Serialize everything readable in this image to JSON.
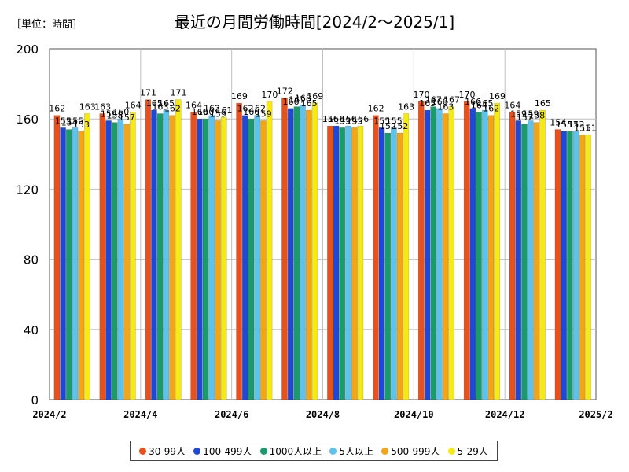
{
  "unit_label": "［単位：時間］",
  "chart_data": {
    "type": "bar",
    "title": "最近の月間労働時間[2024/2〜2025/1]",
    "xlabel": "",
    "ylabel": "",
    "ylim": [
      0,
      200
    ],
    "yticks": [
      0,
      40,
      80,
      120,
      160,
      200
    ],
    "grid": true,
    "legend_position": "bottom",
    "categories": [
      "2024/2",
      "2024/3",
      "2024/4",
      "2024/5",
      "2024/6",
      "2024/7",
      "2024/8",
      "2024/9",
      "2024/10",
      "2024/11",
      "2024/12",
      "2025/1"
    ],
    "x_tick_labels": [
      "2024/2",
      "2024/4",
      "2024/6",
      "2024/8",
      "2024/10",
      "2024/12",
      "2025/2"
    ],
    "series": [
      {
        "name": "30-99人",
        "color": "#e8501c",
        "values": [
          162,
          163,
          171,
          164,
          169,
          172,
          156,
          162,
          170,
          170,
          164,
          154
        ]
      },
      {
        "name": "100-499人",
        "color": "#1f48d8",
        "values": [
          155,
          159,
          165,
          160,
          162,
          166,
          156,
          155,
          165,
          166,
          159,
          153
        ]
      },
      {
        "name": "1000人以上",
        "color": "#1a9b6c",
        "values": [
          154,
          158,
          163,
          160,
          160,
          167,
          155,
          152,
          167,
          164,
          157,
          153
        ]
      },
      {
        "name": "5人以上",
        "color": "#5ec3ec",
        "values": [
          155,
          160,
          165,
          162,
          162,
          168,
          156,
          155,
          166,
          165,
          159,
          153
        ]
      },
      {
        "name": "500-999人",
        "color": "#f2a516",
        "values": [
          153,
          157,
          162,
          159,
          159,
          165,
          155,
          152,
          163,
          162,
          158,
          151
        ]
      },
      {
        "name": "5-29人",
        "color": "#f6ea10",
        "values": [
          163,
          164,
          171,
          161,
          170,
          169,
          156,
          163,
          167,
          169,
          165,
          151
        ]
      }
    ]
  }
}
